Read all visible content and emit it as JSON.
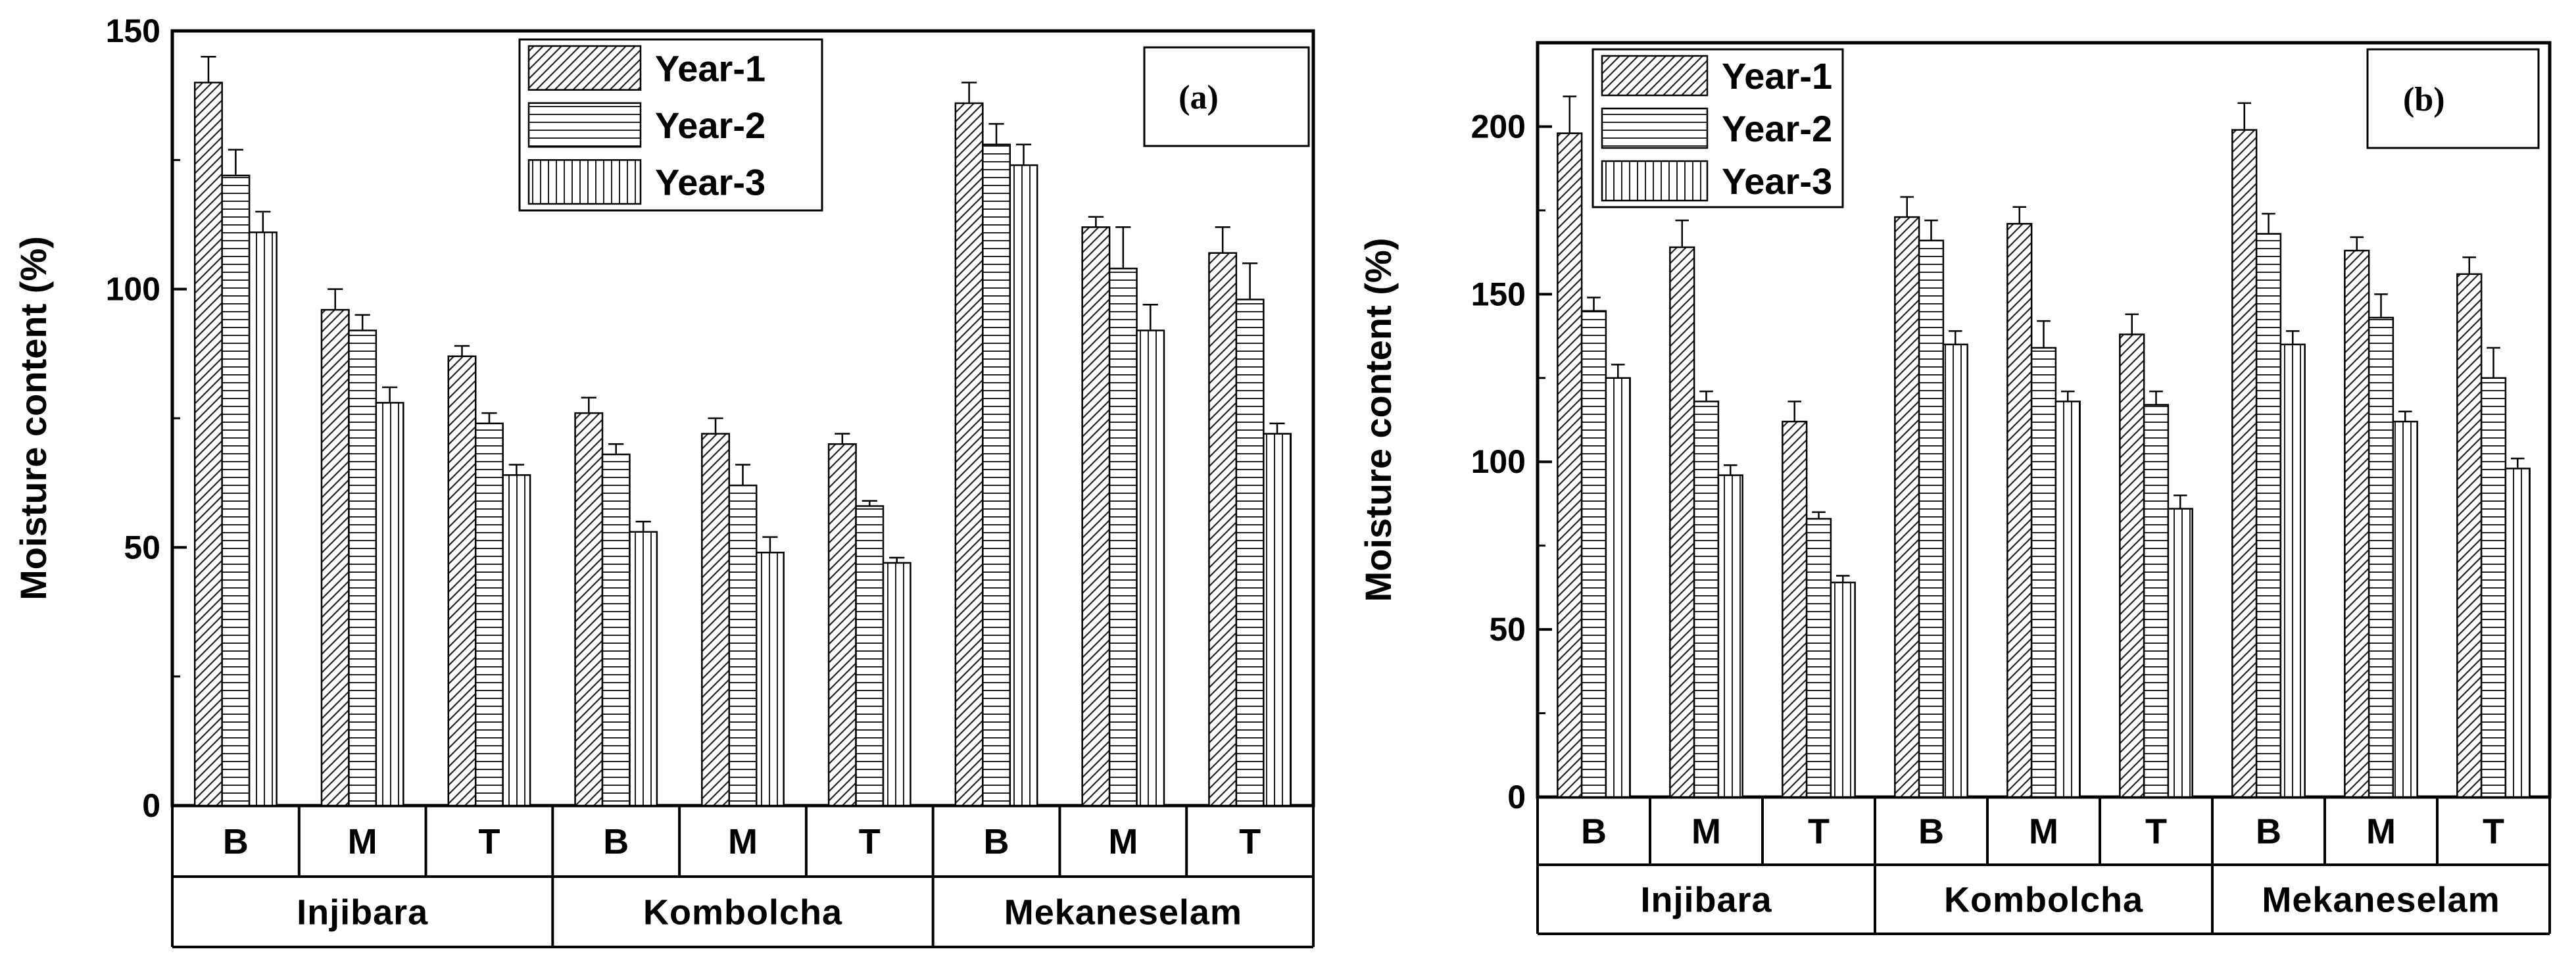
{
  "chart_data": [
    {
      "type": "bar",
      "panel": "(a)",
      "ylabel": "Moisture content (%)",
      "xlabel": "",
      "ylim": [
        0,
        150
      ],
      "yticks": [
        0,
        50,
        100,
        150
      ],
      "groups": [
        {
          "label": "Injibara",
          "categories": [
            "B",
            "M",
            "T"
          ]
        },
        {
          "label": "Kombolcha",
          "categories": [
            "B",
            "M",
            "T"
          ]
        },
        {
          "label": "Mekaneselam",
          "categories": [
            "B",
            "M",
            "T"
          ]
        }
      ],
      "series": [
        {
          "name": "Year-1",
          "pattern": "diagonal",
          "values": [
            140,
            96,
            87,
            76,
            72,
            70,
            136,
            112,
            107
          ],
          "errors": [
            5,
            4,
            2,
            3,
            3,
            2,
            4,
            2,
            5
          ]
        },
        {
          "name": "Year-2",
          "pattern": "horizontal",
          "values": [
            122,
            92,
            74,
            68,
            62,
            58,
            128,
            104,
            98
          ],
          "errors": [
            5,
            3,
            2,
            2,
            4,
            1,
            4,
            8,
            7
          ]
        },
        {
          "name": "Year-3",
          "pattern": "vertical",
          "values": [
            111,
            78,
            64,
            53,
            49,
            47,
            124,
            92,
            72
          ],
          "errors": [
            4,
            3,
            2,
            2,
            3,
            1,
            4,
            5,
            2
          ]
        }
      ],
      "legend_position": "top-center"
    },
    {
      "type": "bar",
      "panel": "(b)",
      "ylabel": "Moisture content (%)",
      "xlabel": "",
      "ylim": [
        0,
        225
      ],
      "yticks": [
        0,
        50,
        100,
        150,
        200
      ],
      "groups": [
        {
          "label": "Injibara",
          "categories": [
            "B",
            "M",
            "T"
          ]
        },
        {
          "label": "Kombolcha",
          "categories": [
            "B",
            "M",
            "T"
          ]
        },
        {
          "label": "Mekaneselam",
          "categories": [
            "B",
            "M",
            "T"
          ]
        }
      ],
      "series": [
        {
          "name": "Year-1",
          "pattern": "diagonal",
          "values": [
            198,
            164,
            112,
            173,
            171,
            138,
            199,
            163,
            156
          ],
          "errors": [
            11,
            8,
            6,
            6,
            5,
            6,
            8,
            4,
            5
          ]
        },
        {
          "name": "Year-2",
          "pattern": "horizontal",
          "values": [
            145,
            118,
            83,
            166,
            134,
            117,
            168,
            143,
            125
          ],
          "errors": [
            4,
            3,
            2,
            6,
            8,
            4,
            6,
            7,
            9
          ]
        },
        {
          "name": "Year-3",
          "pattern": "vertical",
          "values": [
            125,
            96,
            64,
            135,
            118,
            86,
            135,
            112,
            98
          ],
          "errors": [
            4,
            3,
            2,
            4,
            3,
            4,
            4,
            3,
            3
          ]
        }
      ],
      "legend_position": "top-left"
    }
  ]
}
